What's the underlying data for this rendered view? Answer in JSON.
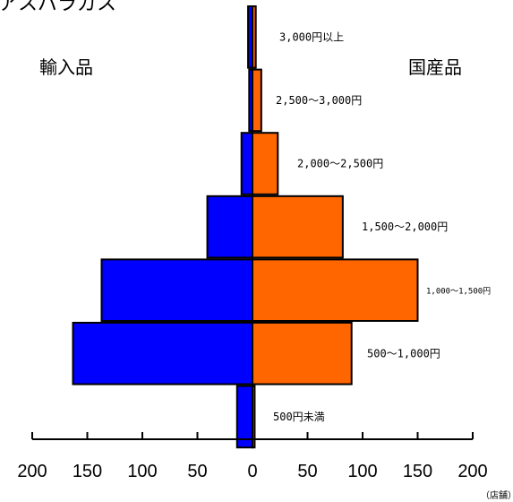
{
  "chart_data": {
    "type": "bar",
    "title": "アスパラガス",
    "left_label": "輸入品",
    "right_label": "国産品",
    "unit": "（店舗）",
    "categories": [
      "3,000円以上",
      "2,500～3,000円",
      "2,000～2,500円",
      "1,500～2,000円",
      "1,000～1,500円",
      "500～1,000円",
      "500円未満"
    ],
    "series": [
      {
        "name": "輸入品",
        "color": "#0000ff",
        "values": [
          4,
          3,
          10,
          41,
          137,
          163,
          14
        ]
      },
      {
        "name": "国産品",
        "color": "#ff6600",
        "values": [
          3,
          8,
          23,
          82,
          150,
          90,
          2
        ]
      }
    ],
    "xlim": [
      -200,
      200
    ],
    "x_ticks": [
      -200,
      -150,
      -100,
      -50,
      0,
      50,
      100,
      150,
      200
    ],
    "x_tick_labels": [
      "200",
      "150",
      "100",
      "50",
      "0",
      "50",
      "100",
      "150",
      "200"
    ],
    "grid": false
  }
}
